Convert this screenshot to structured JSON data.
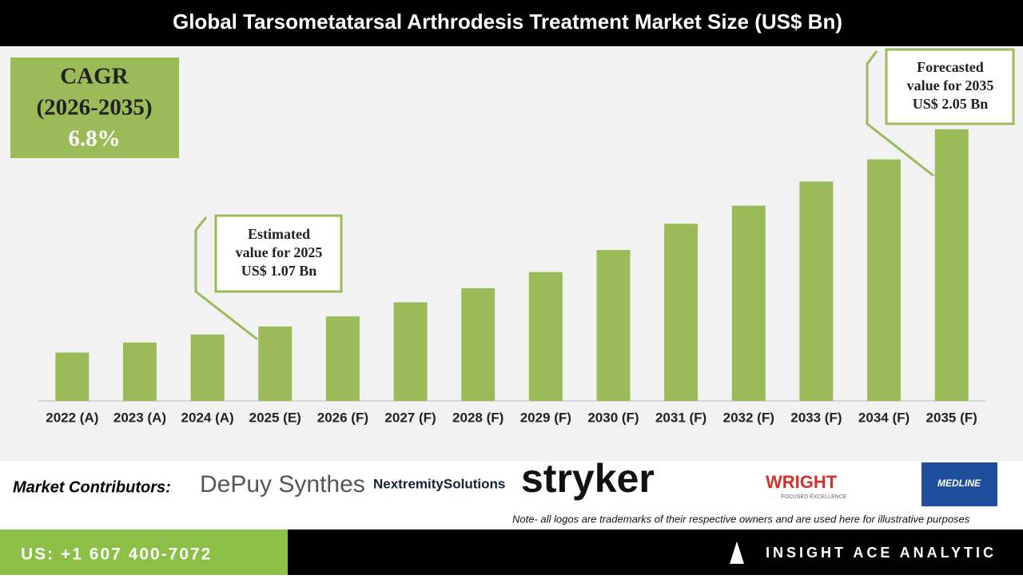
{
  "chart_data": {
    "type": "bar",
    "title": "Global Tarsometatarsal Arthrodesis Treatment Market Size (US$ Bn)",
    "categories": [
      "2022 (A)",
      "2023 (A)",
      "2024 (A)",
      "2025 (E)",
      "2026 (F)",
      "2027 (F)",
      "2028 (F)",
      "2029 (F)",
      "2030 (F)",
      "2031 (F)",
      "2032 (F)",
      "2033 (F)",
      "2034 (F)",
      "2035 (F)"
    ],
    "values": [
      0.94,
      0.99,
      1.03,
      1.07,
      1.12,
      1.19,
      1.26,
      1.34,
      1.45,
      1.58,
      1.67,
      1.79,
      1.9,
      2.05
    ],
    "color": "#9bbb59",
    "ylim": [
      0.7,
      2.2
    ],
    "annotations": [
      [
        "Estimated",
        "value for 2025",
        "US$ 1.07 Bn"
      ],
      [
        "Forecasted",
        "value for 2035",
        "US$ 2.05 Bn"
      ]
    ],
    "cagr": [
      "CAGR",
      "(2026-2035)",
      "6.8%"
    ]
  },
  "contributors": {
    "label": "Market Contributors:",
    "logos": [
      "DePuy Synthes",
      "NextremitySolutions",
      "stryker",
      "WRIGHT",
      "FOCUSED EXCELLENCE",
      "MEDLINE"
    ],
    "note": "Note- all logos are trademarks of their respective owners and are used here for illustrative purposes"
  },
  "footer": {
    "phone": "US: +1 607 400-7072",
    "company": "INSIGHT ACE ANALYTIC"
  }
}
